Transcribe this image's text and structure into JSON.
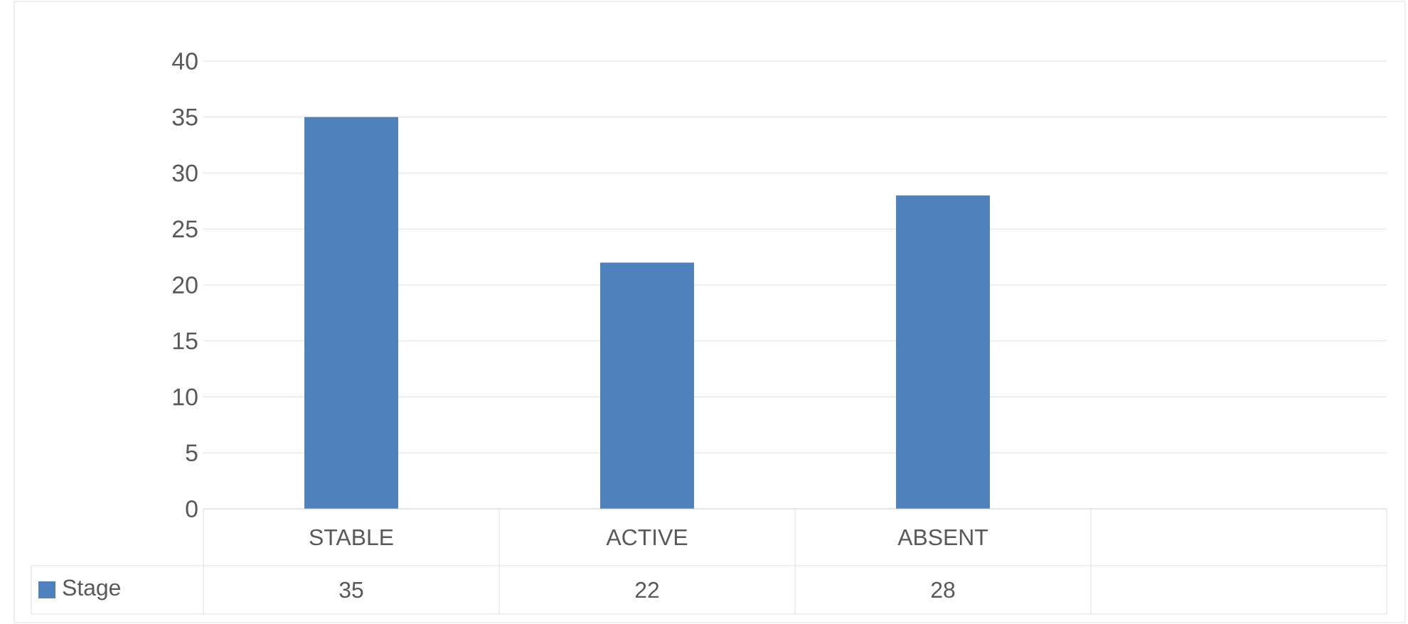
{
  "chart_data": {
    "type": "bar",
    "categories": [
      "STABLE",
      "ACTIVE",
      "ABSENT",
      null
    ],
    "series": [
      {
        "name": "Stage",
        "color": "#4f81bd",
        "values": [
          35,
          22,
          28,
          null
        ]
      }
    ],
    "ylim": [
      0,
      40
    ],
    "yticks": [
      0,
      5,
      10,
      15,
      20,
      25,
      30,
      35,
      40
    ],
    "grid": "y",
    "data_labels": true
  }
}
